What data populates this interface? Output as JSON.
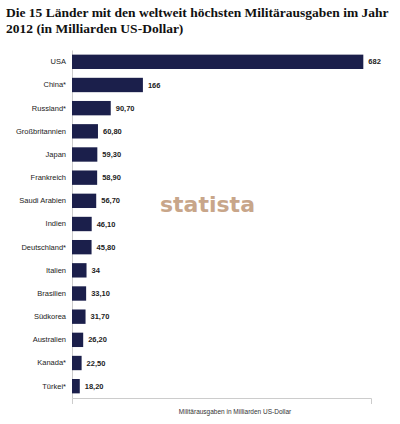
{
  "chart_data": {
    "type": "bar",
    "orientation": "horizontal",
    "title": "Die 15 Länder mit den weltweit höchsten Militärausgaben im Jahr 2012 (in Milliarden US-Dollar)",
    "x_label": "Militärausgaben in Milliarden US-Dollar",
    "categories": [
      "USA",
      "China*",
      "Russland*",
      "Großbritannien",
      "Japan",
      "Frankreich",
      "Saudi Arabien",
      "Indien",
      "Deutschland*",
      "Italien",
      "Brasilien",
      "Südkorea",
      "Australien",
      "Kanada*",
      "Türkei*"
    ],
    "values": [
      682,
      166,
      90.7,
      60.8,
      59.3,
      58.9,
      56.7,
      46.1,
      45.8,
      34,
      33.1,
      31.7,
      26.2,
      22.5,
      18.2
    ],
    "value_labels": [
      "682",
      "166",
      "90,70",
      "60,80",
      "59,30",
      "58,90",
      "56,70",
      "46,10",
      "45,80",
      "34",
      "33,10",
      "31,70",
      "26,20",
      "22,50",
      "18,20"
    ],
    "data_labels": true,
    "color": "#1b1f4b",
    "xlim": [
      0,
      700
    ],
    "tick_labels": "y",
    "grid": false,
    "annotations": [
      "statista"
    ]
  }
}
